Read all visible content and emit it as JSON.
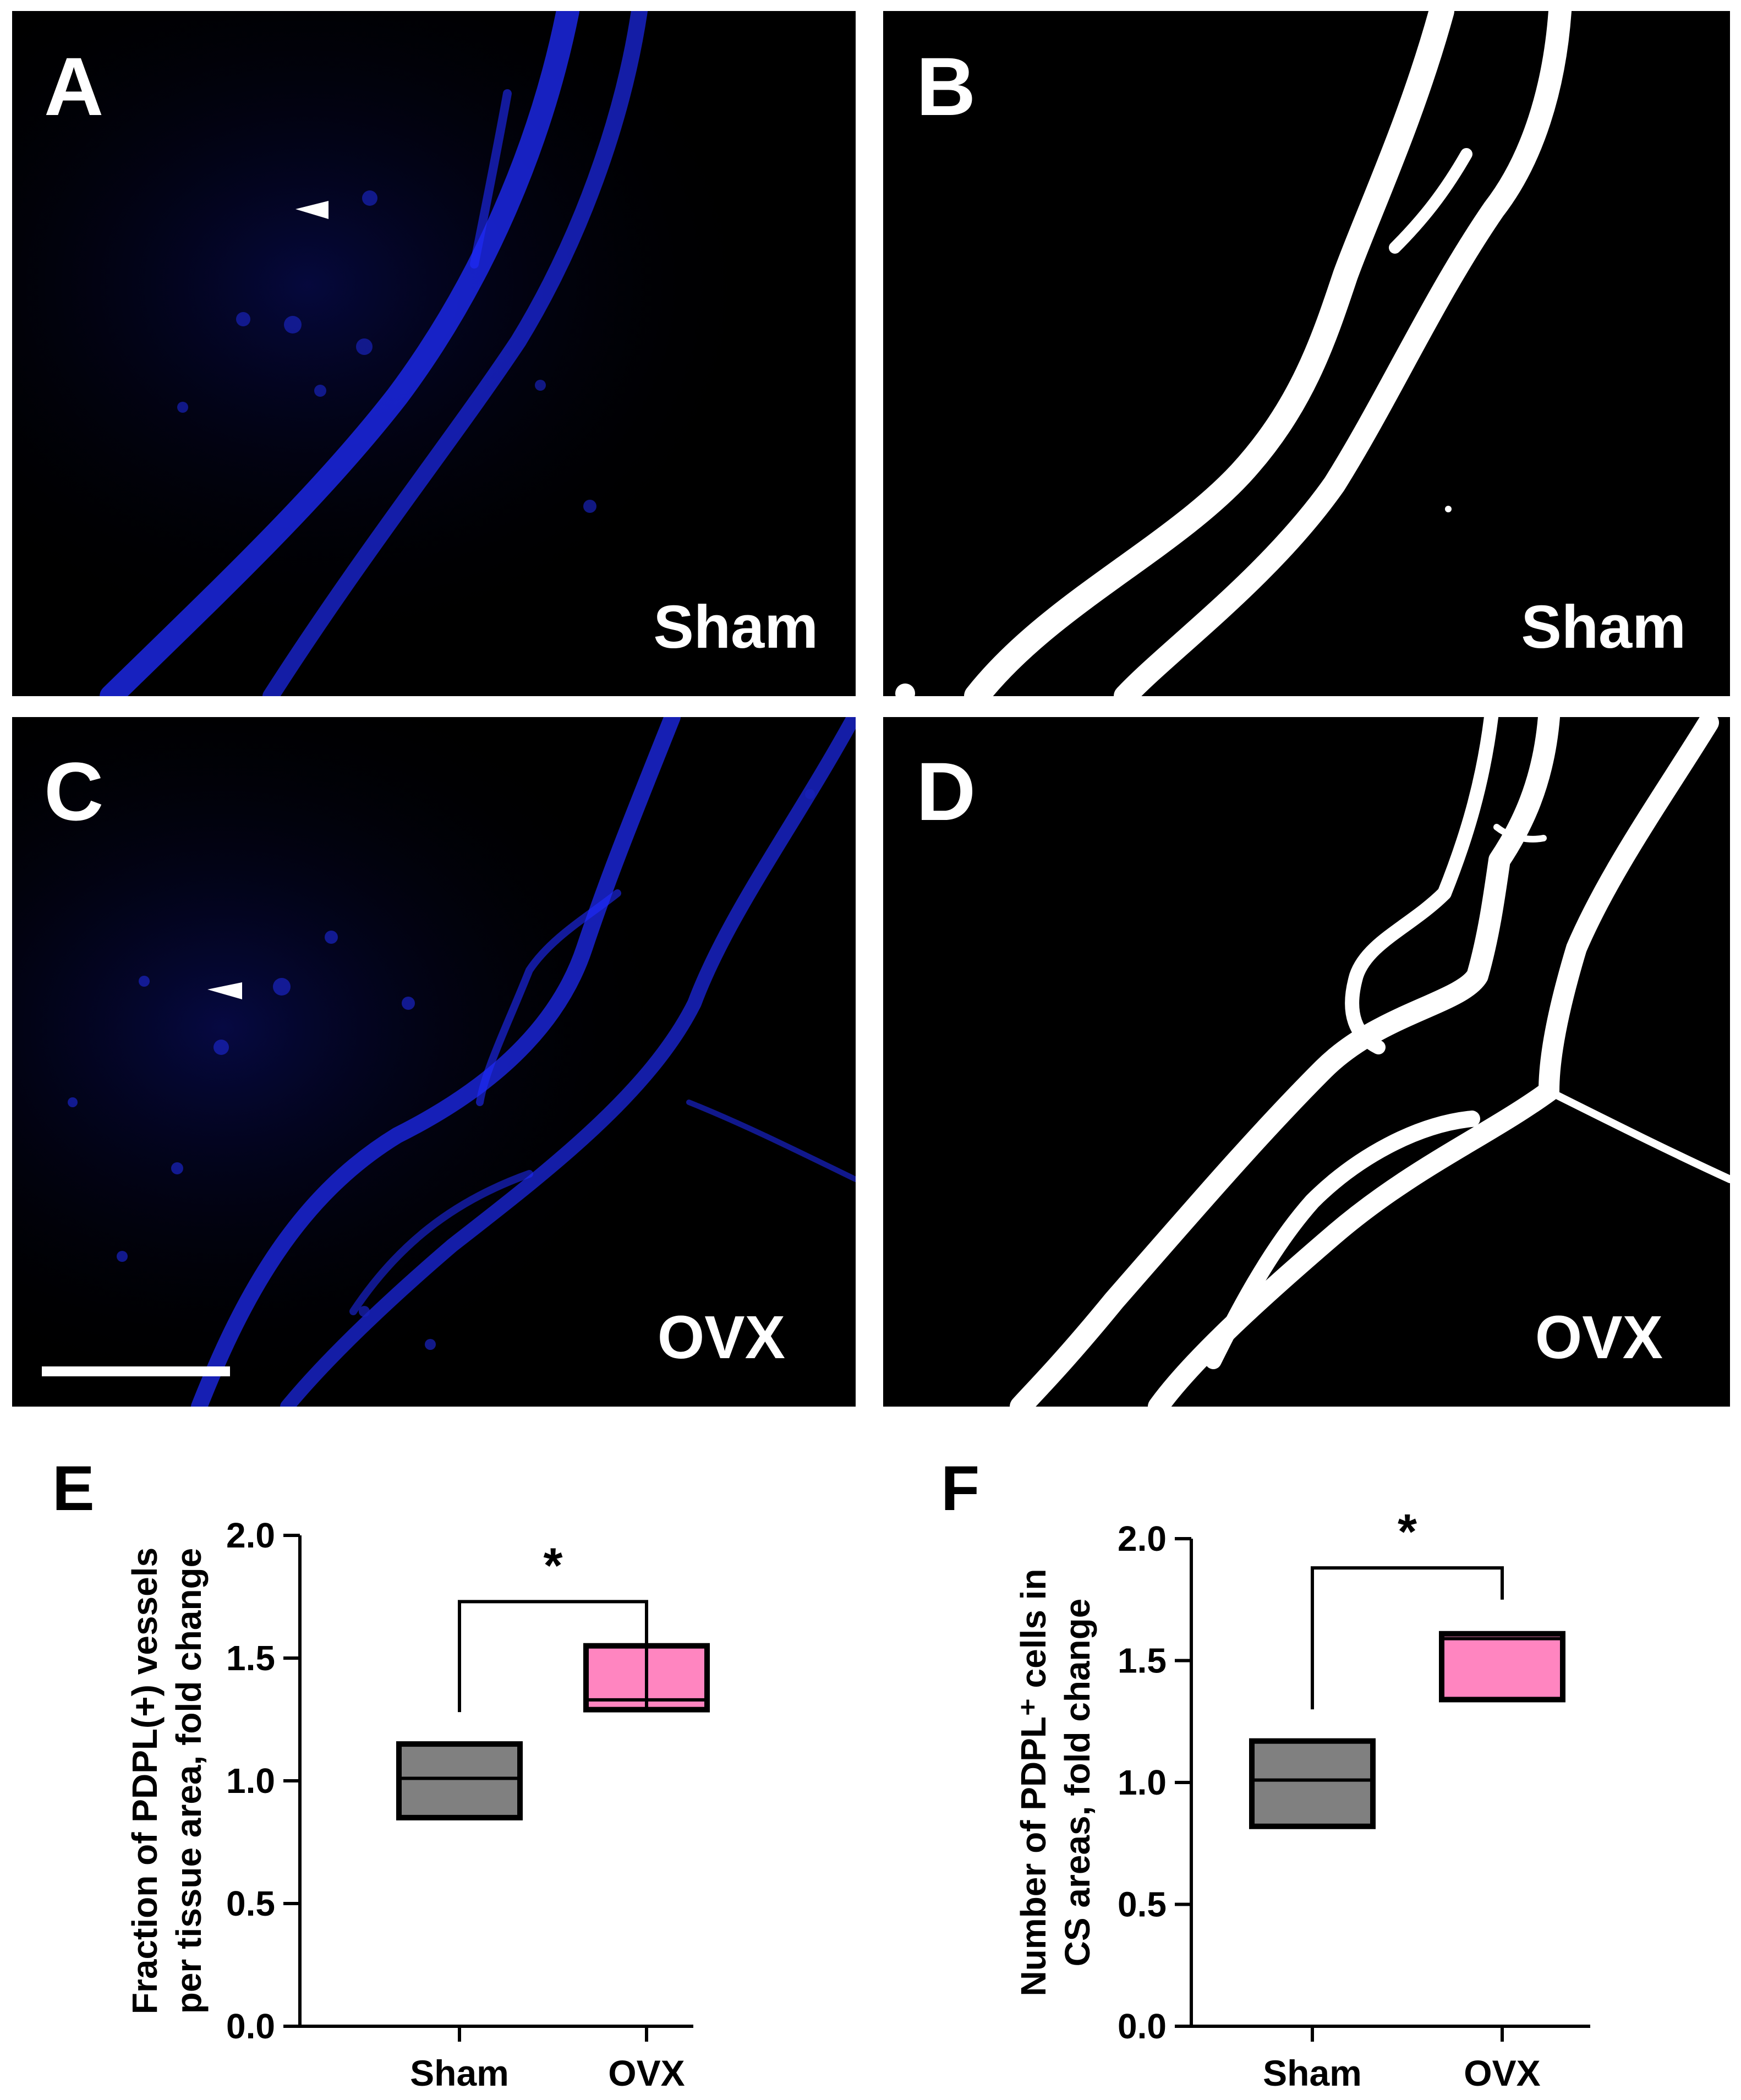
{
  "panels": {
    "A": {
      "letter": "A",
      "condition": "Sham"
    },
    "B": {
      "letter": "B",
      "condition": "Sham"
    },
    "C": {
      "letter": "C",
      "condition": "OVX"
    },
    "D": {
      "letter": "D",
      "condition": "OVX"
    }
  },
  "colors": {
    "fluorescence": "#1f2cff",
    "background": "#000000",
    "mask": "#ffffff",
    "sham_box": "#808080",
    "ovx_box": "#ff85c0"
  },
  "chart_data": [
    {
      "panel": "E",
      "type": "box",
      "ylabel_lines": [
        "Fraction of PDPL(+) vessels",
        "per tissue area, fold change"
      ],
      "ylim": [
        0.0,
        2.0
      ],
      "yticks": [
        "0.0",
        "0.5",
        "1.0",
        "1.5",
        "2.0"
      ],
      "categories": [
        "Sham",
        "OVX"
      ],
      "boxes": [
        {
          "q1": 0.85,
          "median": 1.01,
          "q3": 1.15
        },
        {
          "q1": 1.29,
          "median": 1.33,
          "q3": 1.55
        }
      ],
      "significance": {
        "label": "*",
        "left_level": 1.28,
        "right_level": 1.28,
        "top": 1.73
      }
    },
    {
      "panel": "F",
      "type": "box",
      "ylabel_lines": [
        "Number of PDPL⁺ cells in",
        "CS areas, fold change"
      ],
      "ylim": [
        0.0,
        2.0
      ],
      "yticks": [
        "0.0",
        "0.5",
        "1.0",
        "1.5",
        "2.0"
      ],
      "categories": [
        "Sham",
        "OVX"
      ],
      "boxes": [
        {
          "q1": 0.82,
          "median": 1.01,
          "q3": 1.17
        },
        {
          "q1": 1.34,
          "median": 1.59,
          "q3": 1.61
        }
      ],
      "significance": {
        "label": "*",
        "left_level": 1.3,
        "right_level": 1.75,
        "top": 1.88
      }
    }
  ]
}
